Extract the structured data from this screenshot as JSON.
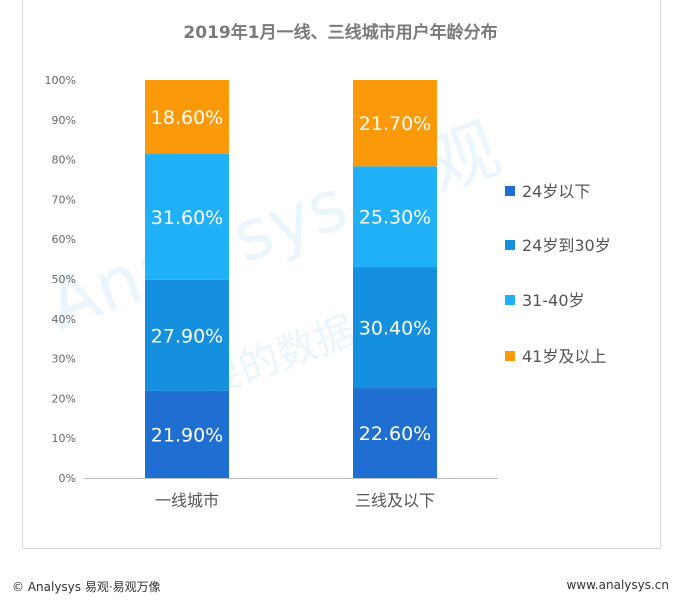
{
  "chart_data": {
    "type": "bar",
    "stacked": true,
    "title": "2019年1月一线、三线城市用户年龄分布",
    "categories": [
      "一线城市",
      "三线及以下"
    ],
    "series": [
      {
        "name": "24岁以下",
        "values": [
          21.9,
          22.6
        ],
        "labels": [
          "21.90%",
          "22.60%"
        ],
        "color": "#1e6fd1"
      },
      {
        "name": "24岁到30岁",
        "values": [
          27.9,
          30.4
        ],
        "labels": [
          "27.90%",
          "30.40%"
        ],
        "color": "#1590de"
      },
      {
        "name": "31-40岁",
        "values": [
          31.6,
          25.3
        ],
        "labels": [
          "31.60%",
          "25.30%"
        ],
        "color": "#1fb0f8"
      },
      {
        "name": "41岁及以上",
        "values": [
          18.6,
          21.7
        ],
        "labels": [
          "18.60%",
          "21.70%"
        ],
        "color": "#fa9a0a"
      }
    ],
    "yticks": [
      "0%",
      "10%",
      "20%",
      "30%",
      "40%",
      "50%",
      "60%",
      "70%",
      "80%",
      "90%",
      "100%"
    ],
    "ylim": [
      0,
      100
    ],
    "legend_position": "right"
  },
  "watermark": {
    "brand": "Analysys 易观",
    "slogan": "你要的数据分析"
  },
  "footer": {
    "left": "© Analysys 易观·易观万像",
    "right": "www.analysys.cn"
  }
}
